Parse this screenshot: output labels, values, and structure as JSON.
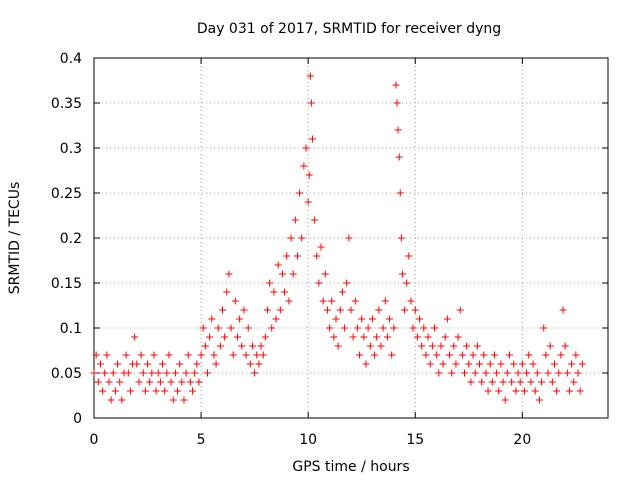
{
  "chart_data": {
    "type": "scatter",
    "title": "Day 031 of 2017, SRMTID for receiver dyng",
    "xlabel": "GPS time / hours",
    "ylabel": "SRMTID / TECUs",
    "xlim": [
      0,
      24
    ],
    "ylim": [
      0,
      0.4
    ],
    "xticks": [
      0,
      5,
      10,
      15,
      20
    ],
    "xtick_labels": [
      "0",
      "5",
      "10",
      "15",
      "20"
    ],
    "yticks": [
      0,
      0.05,
      0.1,
      0.15,
      0.2,
      0.25,
      0.3,
      0.35,
      0.4
    ],
    "ytick_labels": [
      "0",
      "0.05",
      "0.1",
      "0.15",
      "0.2",
      "0.25",
      "0.3",
      "0.35",
      "0.4"
    ],
    "grid": true,
    "marker": "plus",
    "marker_color": "#ff0000",
    "series": [
      {
        "name": "SRMTID",
        "points": [
          [
            0.0,
            0.05
          ],
          [
            0.1,
            0.07
          ],
          [
            0.2,
            0.04
          ],
          [
            0.3,
            0.06
          ],
          [
            0.4,
            0.03
          ],
          [
            0.5,
            0.05
          ],
          [
            0.6,
            0.07
          ],
          [
            0.7,
            0.04
          ],
          [
            0.8,
            0.02
          ],
          [
            0.9,
            0.05
          ],
          [
            1.0,
            0.03
          ],
          [
            1.1,
            0.06
          ],
          [
            1.2,
            0.04
          ],
          [
            1.3,
            0.02
          ],
          [
            1.4,
            0.05
          ],
          [
            1.5,
            0.07
          ],
          [
            1.6,
            0.05
          ],
          [
            1.7,
            0.03
          ],
          [
            1.8,
            0.06
          ],
          [
            1.9,
            0.09
          ],
          [
            2.0,
            0.06
          ],
          [
            2.1,
            0.04
          ],
          [
            2.2,
            0.07
          ],
          [
            2.3,
            0.05
          ],
          [
            2.4,
            0.03
          ],
          [
            2.5,
            0.06
          ],
          [
            2.6,
            0.04
          ],
          [
            2.7,
            0.05
          ],
          [
            2.8,
            0.07
          ],
          [
            2.9,
            0.03
          ],
          [
            3.0,
            0.05
          ],
          [
            3.1,
            0.04
          ],
          [
            3.2,
            0.06
          ],
          [
            3.3,
            0.03
          ],
          [
            3.4,
            0.05
          ],
          [
            3.5,
            0.07
          ],
          [
            3.6,
            0.04
          ],
          [
            3.7,
            0.02
          ],
          [
            3.8,
            0.05
          ],
          [
            3.9,
            0.03
          ],
          [
            4.0,
            0.06
          ],
          [
            4.1,
            0.04
          ],
          [
            4.2,
            0.02
          ],
          [
            4.3,
            0.05
          ],
          [
            4.4,
            0.07
          ],
          [
            4.5,
            0.04
          ],
          [
            4.6,
            0.03
          ],
          [
            4.7,
            0.05
          ],
          [
            4.8,
            0.06
          ],
          [
            4.9,
            0.04
          ],
          [
            5.0,
            0.07
          ],
          [
            5.1,
            0.1
          ],
          [
            5.2,
            0.08
          ],
          [
            5.3,
            0.05
          ],
          [
            5.4,
            0.09
          ],
          [
            5.5,
            0.11
          ],
          [
            5.6,
            0.07
          ],
          [
            5.7,
            0.06
          ],
          [
            5.8,
            0.1
          ],
          [
            5.9,
            0.08
          ],
          [
            6.0,
            0.12
          ],
          [
            6.1,
            0.09
          ],
          [
            6.2,
            0.14
          ],
          [
            6.3,
            0.16
          ],
          [
            6.4,
            0.1
          ],
          [
            6.5,
            0.07
          ],
          [
            6.6,
            0.13
          ],
          [
            6.7,
            0.09
          ],
          [
            6.8,
            0.11
          ],
          [
            6.9,
            0.08
          ],
          [
            7.0,
            0.12
          ],
          [
            7.1,
            0.07
          ],
          [
            7.2,
            0.1
          ],
          [
            7.3,
            0.06
          ],
          [
            7.4,
            0.08
          ],
          [
            7.5,
            0.05
          ],
          [
            7.6,
            0.07
          ],
          [
            7.7,
            0.06
          ],
          [
            7.8,
            0.08
          ],
          [
            7.9,
            0.07
          ],
          [
            8.0,
            0.09
          ],
          [
            8.1,
            0.12
          ],
          [
            8.2,
            0.15
          ],
          [
            8.3,
            0.1
          ],
          [
            8.4,
            0.14
          ],
          [
            8.5,
            0.11
          ],
          [
            8.6,
            0.17
          ],
          [
            8.7,
            0.12
          ],
          [
            8.8,
            0.16
          ],
          [
            8.9,
            0.14
          ],
          [
            9.0,
            0.18
          ],
          [
            9.1,
            0.13
          ],
          [
            9.2,
            0.2
          ],
          [
            9.3,
            0.16
          ],
          [
            9.4,
            0.22
          ],
          [
            9.5,
            0.18
          ],
          [
            9.6,
            0.25
          ],
          [
            9.7,
            0.2
          ],
          [
            9.8,
            0.28
          ],
          [
            9.9,
            0.3
          ],
          [
            10.0,
            0.24
          ],
          [
            10.05,
            0.27
          ],
          [
            10.1,
            0.38
          ],
          [
            10.15,
            0.35
          ],
          [
            10.2,
            0.31
          ],
          [
            10.3,
            0.22
          ],
          [
            10.4,
            0.18
          ],
          [
            10.5,
            0.15
          ],
          [
            10.6,
            0.19
          ],
          [
            10.7,
            0.13
          ],
          [
            10.8,
            0.16
          ],
          [
            10.9,
            0.12
          ],
          [
            11.0,
            0.1
          ],
          [
            11.1,
            0.13
          ],
          [
            11.2,
            0.09
          ],
          [
            11.3,
            0.11
          ],
          [
            11.4,
            0.08
          ],
          [
            11.5,
            0.12
          ],
          [
            11.6,
            0.14
          ],
          [
            11.7,
            0.1
          ],
          [
            11.8,
            0.15
          ],
          [
            11.9,
            0.2
          ],
          [
            12.0,
            0.12
          ],
          [
            12.1,
            0.09
          ],
          [
            12.2,
            0.13
          ],
          [
            12.3,
            0.1
          ],
          [
            12.4,
            0.07
          ],
          [
            12.5,
            0.11
          ],
          [
            12.6,
            0.09
          ],
          [
            12.7,
            0.06
          ],
          [
            12.8,
            0.1
          ],
          [
            12.9,
            0.08
          ],
          [
            13.0,
            0.11
          ],
          [
            13.1,
            0.07
          ],
          [
            13.2,
            0.09
          ],
          [
            13.3,
            0.12
          ],
          [
            13.4,
            0.08
          ],
          [
            13.5,
            0.1
          ],
          [
            13.6,
            0.13
          ],
          [
            13.7,
            0.09
          ],
          [
            13.8,
            0.11
          ],
          [
            13.9,
            0.07
          ],
          [
            14.0,
            0.1
          ],
          [
            14.1,
            0.37
          ],
          [
            14.15,
            0.35
          ],
          [
            14.2,
            0.32
          ],
          [
            14.25,
            0.29
          ],
          [
            14.3,
            0.25
          ],
          [
            14.35,
            0.2
          ],
          [
            14.4,
            0.16
          ],
          [
            14.5,
            0.12
          ],
          [
            14.6,
            0.15
          ],
          [
            14.7,
            0.18
          ],
          [
            14.8,
            0.13
          ],
          [
            14.9,
            0.1
          ],
          [
            15.0,
            0.12
          ],
          [
            15.1,
            0.09
          ],
          [
            15.2,
            0.11
          ],
          [
            15.3,
            0.08
          ],
          [
            15.4,
            0.1
          ],
          [
            15.5,
            0.07
          ],
          [
            15.6,
            0.09
          ],
          [
            15.7,
            0.06
          ],
          [
            15.8,
            0.08
          ],
          [
            15.9,
            0.1
          ],
          [
            16.0,
            0.07
          ],
          [
            16.1,
            0.05
          ],
          [
            16.2,
            0.08
          ],
          [
            16.3,
            0.06
          ],
          [
            16.4,
            0.09
          ],
          [
            16.5,
            0.11
          ],
          [
            16.6,
            0.07
          ],
          [
            16.7,
            0.05
          ],
          [
            16.8,
            0.08
          ],
          [
            16.9,
            0.06
          ],
          [
            17.0,
            0.09
          ],
          [
            17.1,
            0.12
          ],
          [
            17.2,
            0.07
          ],
          [
            17.3,
            0.05
          ],
          [
            17.4,
            0.08
          ],
          [
            17.5,
            0.06
          ],
          [
            17.6,
            0.04
          ],
          [
            17.7,
            0.07
          ],
          [
            17.8,
            0.05
          ],
          [
            17.9,
            0.08
          ],
          [
            18.0,
            0.06
          ],
          [
            18.1,
            0.04
          ],
          [
            18.2,
            0.07
          ],
          [
            18.3,
            0.05
          ],
          [
            18.4,
            0.03
          ],
          [
            18.5,
            0.06
          ],
          [
            18.6,
            0.04
          ],
          [
            18.7,
            0.07
          ],
          [
            18.8,
            0.05
          ],
          [
            18.9,
            0.03
          ],
          [
            19.0,
            0.06
          ],
          [
            19.1,
            0.04
          ],
          [
            19.2,
            0.02
          ],
          [
            19.3,
            0.05
          ],
          [
            19.4,
            0.07
          ],
          [
            19.5,
            0.04
          ],
          [
            19.6,
            0.06
          ],
          [
            19.7,
            0.03
          ],
          [
            19.8,
            0.05
          ],
          [
            19.9,
            0.04
          ],
          [
            20.0,
            0.06
          ],
          [
            20.1,
            0.03
          ],
          [
            20.2,
            0.05
          ],
          [
            20.3,
            0.07
          ],
          [
            20.4,
            0.04
          ],
          [
            20.5,
            0.06
          ],
          [
            20.6,
            0.03
          ],
          [
            20.7,
            0.05
          ],
          [
            20.8,
            0.02
          ],
          [
            20.9,
            0.04
          ],
          [
            21.0,
            0.1
          ],
          [
            21.1,
            0.07
          ],
          [
            21.2,
            0.05
          ],
          [
            21.3,
            0.08
          ],
          [
            21.4,
            0.04
          ],
          [
            21.5,
            0.06
          ],
          [
            21.6,
            0.03
          ],
          [
            21.7,
            0.05
          ],
          [
            21.8,
            0.07
          ],
          [
            21.9,
            0.12
          ],
          [
            22.0,
            0.08
          ],
          [
            22.1,
            0.05
          ],
          [
            22.2,
            0.03
          ],
          [
            22.3,
            0.06
          ],
          [
            22.4,
            0.04
          ],
          [
            22.5,
            0.07
          ],
          [
            22.6,
            0.05
          ],
          [
            22.7,
            0.03
          ],
          [
            22.8,
            0.06
          ]
        ]
      }
    ]
  }
}
